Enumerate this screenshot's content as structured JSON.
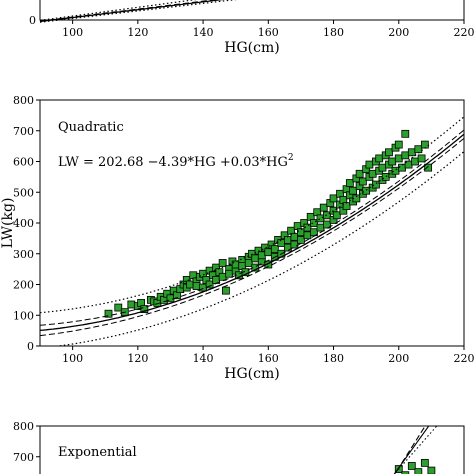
{
  "chart_data": [
    {
      "type": "scatter",
      "xlabel": "HG(cm)",
      "ylabel": "",
      "xlim": [
        90,
        220
      ],
      "ylim": [
        0,
        800
      ],
      "x_ticks": [
        100,
        120,
        140,
        160,
        180,
        200,
        220
      ],
      "y_ticks": [
        0
      ],
      "annotations": [],
      "series": [
        {
          "type": "line",
          "style": "dotted",
          "x": [
            90,
            220
          ],
          "y": [
            -10,
            1500
          ]
        },
        {
          "type": "line",
          "style": "dotted",
          "x": [
            90,
            220
          ],
          "y": [
            -60,
            1250
          ]
        },
        {
          "type": "line",
          "style": "dashed",
          "x": [
            90,
            220
          ],
          "y": [
            -30,
            1350
          ]
        },
        {
          "type": "line",
          "style": "solid",
          "x": [
            90,
            220
          ],
          "y": [
            -40,
            1320
          ]
        }
      ]
    },
    {
      "type": "scatter",
      "xlabel": "HG(cm)",
      "ylabel": "LW(kg)",
      "xlim": [
        90,
        220
      ],
      "ylim": [
        0,
        800
      ],
      "x_ticks": [
        100,
        120,
        140,
        160,
        180,
        200,
        220
      ],
      "y_ticks": [
        0,
        100,
        200,
        300,
        400,
        500,
        600,
        700,
        800
      ],
      "annotations": [
        "Quadratic",
        "LW = 202.68 −4.39*HG +0.03*HG",
        "2"
      ],
      "marker_color": "#2ca02c",
      "fit": {
        "a": 202.68,
        "b": -4.39,
        "c": 0.03
      },
      "points": {
        "x": [
          111,
          114,
          116,
          118,
          120,
          121,
          122,
          124,
          125,
          126,
          127,
          128,
          129,
          130,
          131,
          132,
          133,
          134,
          135,
          135,
          136,
          137,
          138,
          138,
          139,
          140,
          140,
          141,
          142,
          142,
          143,
          144,
          144,
          145,
          146,
          146,
          147,
          148,
          148,
          149,
          150,
          150,
          151,
          152,
          152,
          153,
          154,
          154,
          155,
          156,
          156,
          157,
          158,
          158,
          159,
          160,
          160,
          161,
          162,
          162,
          163,
          164,
          164,
          165,
          166,
          166,
          167,
          168,
          168,
          169,
          170,
          170,
          171,
          172,
          172,
          173,
          174,
          174,
          175,
          176,
          176,
          177,
          178,
          178,
          179,
          180,
          180,
          180,
          181,
          182,
          182,
          183,
          183,
          184,
          184,
          185,
          185,
          186,
          186,
          187,
          187,
          188,
          188,
          189,
          189,
          190,
          190,
          191,
          191,
          192,
          192,
          193,
          193,
          194,
          194,
          195,
          195,
          196,
          196,
          197,
          197,
          198,
          198,
          199,
          199,
          200,
          200,
          201,
          202,
          202,
          203,
          204,
          205,
          206,
          207,
          208,
          209
        ],
        "y": [
          105,
          125,
          110,
          135,
          130,
          140,
          120,
          150,
          145,
          140,
          160,
          150,
          170,
          155,
          180,
          165,
          185,
          200,
          190,
          215,
          200,
          230,
          210,
          195,
          225,
          190,
          235,
          215,
          245,
          200,
          230,
          255,
          215,
          240,
          225,
          270,
          180,
          250,
          235,
          275,
          245,
          265,
          230,
          280,
          260,
          240,
          290,
          270,
          300,
          255,
          285,
          310,
          275,
          295,
          320,
          265,
          305,
          330,
          290,
          315,
          345,
          300,
          335,
          360,
          320,
          345,
          375,
          330,
          355,
          390,
          345,
          370,
          400,
          360,
          385,
          420,
          370,
          400,
          435,
          385,
          415,
          450,
          395,
          425,
          465,
          410,
          440,
          480,
          425,
          460,
          495,
          440,
          475,
          510,
          455,
          490,
          530,
          470,
          505,
          545,
          480,
          520,
          560,
          495,
          535,
          575,
          505,
          550,
          590,
          515,
          560,
          600,
          525,
          570,
          610,
          540,
          580,
          620,
          550,
          590,
          630,
          560,
          600,
          645,
          570,
          610,
          655,
          580,
          620,
          690,
          590,
          630,
          600,
          640,
          610,
          655,
          580
        ]
      },
      "series": [
        {
          "type": "line",
          "style": "solid",
          "role": "fit"
        },
        {
          "type": "line",
          "style": "dashed",
          "role": "confidence-band"
        },
        {
          "type": "line",
          "style": "dotted",
          "role": "prediction-band"
        }
      ]
    },
    {
      "type": "scatter",
      "xlabel": "",
      "ylabel": "",
      "xlim": [
        90,
        220
      ],
      "ylim": [
        0,
        800
      ],
      "x_ticks": [],
      "y_ticks": [
        700,
        800
      ],
      "annotations": [
        "Exponential"
      ],
      "marker_color": "#2ca02c",
      "points": {
        "x": [
          200,
          202,
          204,
          206,
          208,
          210
        ],
        "y": [
          660,
          640,
          670,
          650,
          680,
          655
        ]
      }
    }
  ]
}
